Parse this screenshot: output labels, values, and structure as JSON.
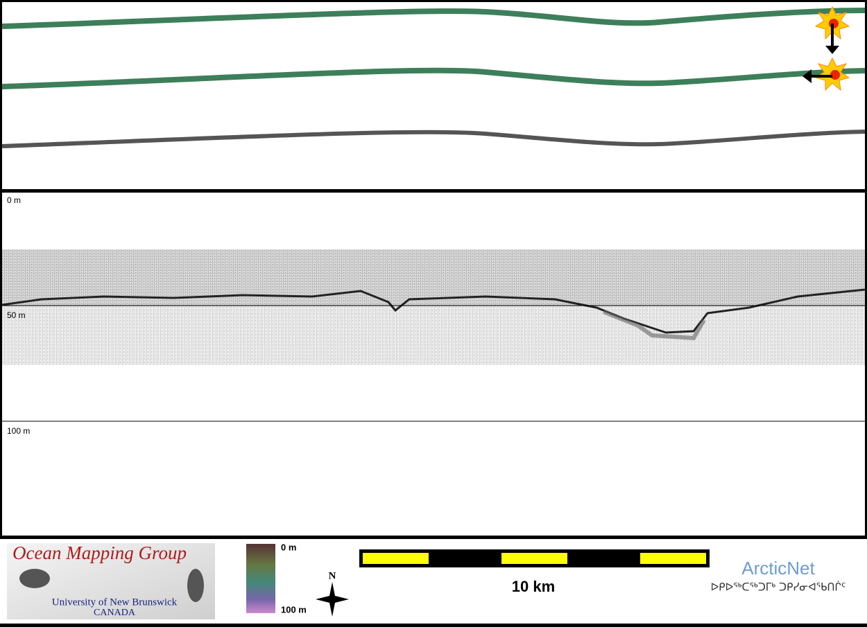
{
  "profile": {
    "depth_labels": [
      "0 m",
      "50 m",
      "100 m"
    ]
  },
  "footer": {
    "logo": {
      "title": "Ocean Mapping Group",
      "university": "University of New Brunswick",
      "country": "CANADA"
    },
    "color_scale": {
      "top": "0 m",
      "bottom": "100 m"
    },
    "north": "N",
    "scale_bar": "10 km",
    "partner": {
      "name": "ArcticNet",
      "syllabics": "ᐅᑭᐅᖅᑕᖅᑐᒥᒃ ᑐᑭᓯᓂᐊᖃᑎᒌᑦ"
    }
  }
}
